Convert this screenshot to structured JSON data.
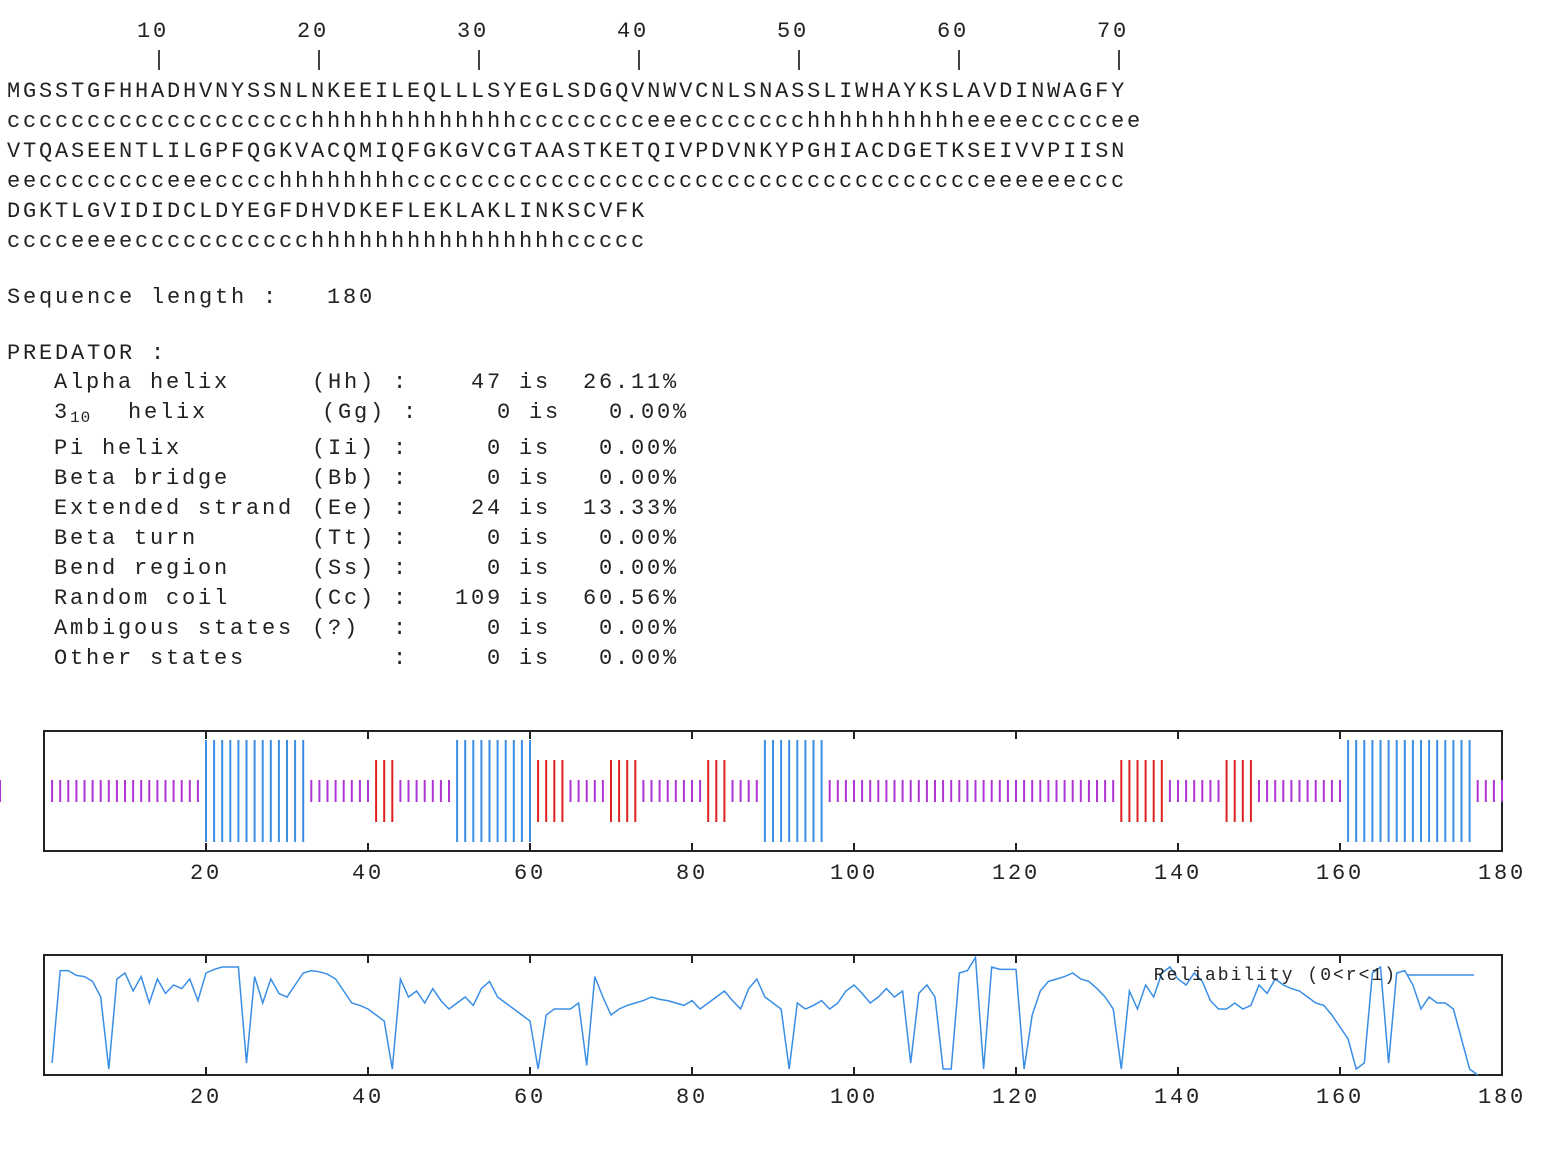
{
  "ruler": [
    10,
    20,
    30,
    40,
    50,
    60,
    70
  ],
  "state_colors": {
    "h": "#2c2cff",
    "e": "#f02828",
    "c": "#f5a623"
  },
  "sequence": [
    {
      "residues": "MGSSTGFHHADHVNYSSNLNKEEILEQLLLSYEGLSDGQVNWVCNLSNASSLIWHAYKSLAVDINWAGFY",
      "prediction": "ccccccccccccccccccchhhhhhhhhhhhhcccccccceeeccccccchhhhhhhhhheeeecccccee"
    },
    {
      "residues": "VTQASEENTLILGPFQGKVACQMIQFGKGVCGTAASTKETQIVPDVNKYPGHIACDGETKSEIVVPIISN",
      "prediction": "eecccccccceeecccchhhhhhhhcccccccccccccccccccccccccccccccccccceeeeeeccc"
    },
    {
      "residues": "DGKTLGVIDIDCLDYEGFDHVDKEFLEKLAKLINKSCVFK",
      "prediction": "cccceeeeccccccccccchhhhhhhhhhhhhhhhccccc"
    }
  ],
  "length_label": "Sequence length :",
  "length": 180,
  "method": "PREDATOR :",
  "stats": {
    "word": "is",
    "separator": ":",
    "rows": [
      {
        "name": "Alpha helix",
        "code": "(Hh)",
        "code_color": "#2c2cff",
        "count": 47,
        "percent": "26.11%"
      },
      {
        "name": "3",
        "name_sub": "10",
        "name_rest": "helix",
        "code": "(Gg)",
        "code_color": "#2c2cff",
        "count": 0,
        "percent": "0.00%"
      },
      {
        "name": "Pi helix",
        "code": "(Ii)",
        "code_color": "#2c2cff",
        "count": 0,
        "percent": "0.00%"
      },
      {
        "name": "Beta bridge",
        "code": "(Bb)",
        "code_color": "#f02828",
        "count": 0,
        "percent": "0.00%"
      },
      {
        "name": "Extended strand",
        "code": "(Ee)",
        "code_color": "#f02828",
        "count": 24,
        "percent": "13.33%"
      },
      {
        "name": "Beta turn",
        "code": "(Tt)",
        "code_color": "#22a022",
        "count": 0,
        "percent": "0.00%"
      },
      {
        "name": "Bend region",
        "code": "(Ss)",
        "code_color": "#f5a623",
        "count": 0,
        "percent": "0.00%"
      },
      {
        "name": "Random coil",
        "code": "(Cc)",
        "code_color": "#f5a623",
        "count": 109,
        "percent": "60.56%"
      },
      {
        "name": "Ambigous states",
        "code": "(?)",
        "count": 0,
        "percent": "0.00%"
      },
      {
        "name": "Other states",
        "count": 0,
        "percent": "0.00%"
      }
    ]
  },
  "chart_data": [
    {
      "type": "states",
      "x": [
        1,
        2,
        3,
        4,
        5,
        6,
        7,
        8,
        9,
        10,
        11,
        12,
        13,
        14,
        15,
        16,
        17,
        18,
        19,
        20,
        21,
        22,
        23,
        24,
        25,
        26,
        27,
        28,
        29,
        30,
        31,
        32,
        33,
        34,
        35,
        36,
        37,
        38,
        39,
        40,
        41,
        42,
        43,
        44,
        45,
        46,
        47,
        48,
        49,
        50,
        51,
        52,
        53,
        54,
        55,
        56,
        57,
        58,
        59,
        60,
        61,
        62,
        63,
        64,
        65,
        66,
        67,
        68,
        69,
        70,
        71,
        72,
        73,
        74,
        75,
        76,
        77,
        78,
        79,
        80,
        81,
        82,
        83,
        84,
        85,
        86,
        87,
        88,
        89,
        90,
        91,
        92,
        93,
        94,
        95,
        96,
        97,
        98,
        99,
        100,
        101,
        102,
        103,
        104,
        105,
        106,
        107,
        108,
        109,
        110,
        111,
        112,
        113,
        114,
        115,
        116,
        117,
        118,
        119,
        120,
        121,
        122,
        123,
        124,
        125,
        126,
        127,
        128,
        129,
        130,
        131,
        132,
        133,
        134,
        135,
        136,
        137,
        138,
        139,
        140,
        141,
        142,
        143,
        144,
        145,
        146,
        147,
        148,
        149,
        150,
        151,
        152,
        153,
        154,
        155,
        156,
        157,
        158,
        159,
        160,
        161,
        162,
        163,
        164,
        165,
        166,
        167,
        168,
        169,
        170,
        171,
        172,
        173,
        174,
        175,
        176,
        177,
        178,
        179,
        180
      ],
      "xlim": [
        0,
        180
      ],
      "xticks": [
        20,
        40,
        60,
        80,
        100,
        120,
        140,
        160,
        180
      ],
      "colors": {
        "h": "#3a8ee6",
        "e": "#e02020",
        "c": "#b035d5"
      }
    },
    {
      "type": "line",
      "x": [
        1,
        2,
        3,
        4,
        5,
        6,
        7,
        8,
        9,
        10,
        11,
        12,
        13,
        14,
        15,
        16,
        17,
        18,
        19,
        20,
        21,
        22,
        23,
        24,
        25,
        26,
        27,
        28,
        29,
        30,
        31,
        32,
        33,
        34,
        35,
        36,
        37,
        38,
        39,
        40,
        41,
        42,
        43,
        44,
        45,
        46,
        47,
        48,
        49,
        50,
        51,
        52,
        53,
        54,
        55,
        56,
        57,
        58,
        59,
        60,
        61,
        62,
        63,
        64,
        65,
        66,
        67,
        68,
        69,
        70,
        71,
        72,
        73,
        74,
        75,
        76,
        77,
        78,
        79,
        80,
        81,
        82,
        83,
        84,
        85,
        86,
        87,
        88,
        89,
        90,
        91,
        92,
        93,
        94,
        95,
        96,
        97,
        98,
        99,
        100,
        101,
        102,
        103,
        104,
        105,
        106,
        107,
        108,
        109,
        110,
        111,
        112,
        113,
        114,
        115,
        116,
        117,
        118,
        119,
        120,
        121,
        122,
        123,
        124,
        125,
        126,
        127,
        128,
        129,
        130,
        131,
        132,
        133,
        134,
        135,
        136,
        137,
        138,
        139,
        140,
        141,
        142,
        143,
        144,
        145,
        146,
        147,
        148,
        149,
        150,
        151,
        152,
        153,
        154,
        155,
        156,
        157,
        158,
        159,
        160,
        161,
        162,
        163,
        164,
        165,
        166,
        167,
        168,
        169,
        170,
        171,
        172,
        173,
        174,
        175,
        176,
        177,
        178,
        179,
        180
      ],
      "series": [
        {
          "name": "Reliability (0<r<1)",
          "color": "#3a8ee6",
          "values": [
            0.1,
            0.87,
            0.87,
            0.83,
            0.82,
            0.78,
            0.65,
            0.05,
            0.8,
            0.85,
            0.7,
            0.82,
            0.6,
            0.8,
            0.68,
            0.75,
            0.72,
            0.8,
            0.62,
            0.85,
            0.88,
            0.9,
            0.9,
            0.9,
            0.1,
            0.82,
            0.6,
            0.8,
            0.68,
            0.65,
            0.75,
            0.85,
            0.87,
            0.86,
            0.84,
            0.8,
            0.7,
            0.6,
            0.58,
            0.55,
            0.5,
            0.45,
            0.05,
            0.8,
            0.65,
            0.7,
            0.6,
            0.72,
            0.62,
            0.55,
            0.6,
            0.65,
            0.58,
            0.72,
            0.78,
            0.65,
            0.6,
            0.55,
            0.5,
            0.45,
            0.05,
            0.5,
            0.55,
            0.55,
            0.55,
            0.6,
            0.08,
            0.82,
            0.65,
            0.5,
            0.55,
            0.58,
            0.6,
            0.62,
            0.65,
            0.63,
            0.62,
            0.6,
            0.58,
            0.62,
            0.55,
            0.6,
            0.65,
            0.7,
            0.62,
            0.55,
            0.72,
            0.8,
            0.65,
            0.6,
            0.55,
            0.05,
            0.6,
            0.55,
            0.58,
            0.62,
            0.55,
            0.6,
            0.7,
            0.75,
            0.68,
            0.6,
            0.65,
            0.72,
            0.65,
            0.7,
            0.1,
            0.68,
            0.75,
            0.65,
            0.05,
            0.05,
            0.85,
            0.87,
            0.98,
            0.05,
            0.9,
            0.88,
            0.88,
            0.88,
            0.05,
            0.5,
            0.7,
            0.78,
            0.8,
            0.82,
            0.85,
            0.8,
            0.78,
            0.72,
            0.65,
            0.55,
            0.05,
            0.7,
            0.55,
            0.75,
            0.65,
            0.85,
            0.9,
            0.8,
            0.75,
            0.85,
            0.78,
            0.62,
            0.55,
            0.55,
            0.6,
            0.55,
            0.58,
            0.75,
            0.68,
            0.8,
            0.75,
            0.72,
            0.7,
            0.65,
            0.6,
            0.58,
            0.5,
            0.4,
            0.3,
            0.05,
            0.1,
            0.85,
            0.9,
            0.1,
            0.85,
            0.87,
            0.75,
            0.55,
            0.65,
            0.6,
            0.6,
            0.55,
            0.3,
            0.05,
            0.0,
            null,
            null,
            null
          ]
        }
      ],
      "xlim": [
        0,
        180
      ],
      "ylim": [
        0,
        1
      ],
      "xticks": [
        20,
        40,
        60,
        80,
        100,
        120,
        140,
        160,
        180
      ],
      "legend": "top-right"
    }
  ]
}
